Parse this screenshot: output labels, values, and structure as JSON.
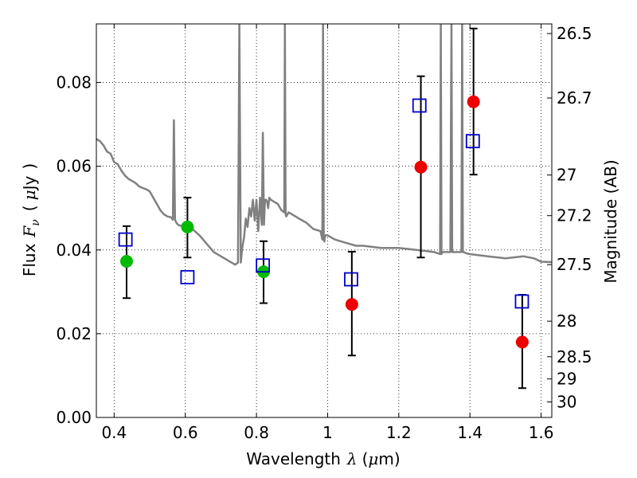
{
  "chart_data": {
    "type": "scatter",
    "xlabel_text": "Wavelength",
    "xlabel_symbol": "λ",
    "xlabel_unit_open": "(",
    "xlabel_unit_mu": "μ",
    "xlabel_unit_rest": "m)",
    "ylabel_text": "Flux",
    "ylabel_symbol": "F",
    "ylabel_subscript": "ν",
    "ylabel_unit_open": "(",
    "ylabel_unit_mu": "μ",
    "ylabel_unit_rest": "Jy",
    "ylabel_unit_close": ")",
    "y2label": "Magnitude (AB)",
    "xlim": [
      0.35,
      1.63
    ],
    "ylim": [
      0.0,
      0.094
    ],
    "xticks": [
      0.4,
      0.6,
      0.8,
      1.0,
      1.2,
      1.4,
      1.6
    ],
    "xtick_labels": [
      "0.4",
      "0.6",
      "0.8",
      "1",
      "1.2",
      "1.4",
      "1.6"
    ],
    "yticks": [
      0.0,
      0.02,
      0.04,
      0.06,
      0.08
    ],
    "ytick_labels": [
      "0.00",
      "0.02",
      "0.04",
      "0.06",
      "0.08"
    ],
    "grid": true,
    "y2ticks": [
      {
        "label": "26.5",
        "flux": 0.0917
      },
      {
        "label": "26.7",
        "flux": 0.0763
      },
      {
        "label": "27",
        "flux": 0.0579
      },
      {
        "label": "27.2",
        "flux": 0.0482
      },
      {
        "label": "27.5",
        "flux": 0.0365
      },
      {
        "label": "28",
        "flux": 0.023
      },
      {
        "label": "28.5",
        "flux": 0.0145
      },
      {
        "label": "29",
        "flux": 0.0092
      },
      {
        "label": "30",
        "flux": 0.0037
      }
    ],
    "model_spectrum": {
      "color": "#808080",
      "x": [
        0.35,
        0.36,
        0.37,
        0.38,
        0.39,
        0.4,
        0.41,
        0.42,
        0.43,
        0.44,
        0.45,
        0.46,
        0.47,
        0.48,
        0.49,
        0.5,
        0.51,
        0.52,
        0.53,
        0.54,
        0.55,
        0.56,
        0.565,
        0.568,
        0.571,
        0.575,
        0.58,
        0.6,
        0.62,
        0.64,
        0.66,
        0.68,
        0.7,
        0.72,
        0.74,
        0.748,
        0.752,
        0.756,
        0.76,
        0.765,
        0.77,
        0.775,
        0.78,
        0.785,
        0.79,
        0.795,
        0.8,
        0.805,
        0.81,
        0.815,
        0.818,
        0.821,
        0.824,
        0.827,
        0.83,
        0.833,
        0.836,
        0.84,
        0.85,
        0.86,
        0.87,
        0.878,
        0.88,
        0.882,
        0.884,
        0.89,
        0.9,
        0.92,
        0.94,
        0.96,
        0.98,
        0.985,
        0.987,
        0.989,
        0.991,
        0.993,
        0.995,
        1.0,
        1.02,
        1.04,
        1.06,
        1.08,
        1.1,
        1.15,
        1.2,
        1.25,
        1.3,
        1.316,
        1.318,
        1.32,
        1.322,
        1.33,
        1.34,
        1.345,
        1.348,
        1.35,
        1.352,
        1.36,
        1.37,
        1.376,
        1.378,
        1.38,
        1.382,
        1.39,
        1.4,
        1.45,
        1.5,
        1.55,
        1.58,
        1.6,
        1.63
      ],
      "y": [
        0.0665,
        0.066,
        0.065,
        0.0635,
        0.063,
        0.061,
        0.0605,
        0.059,
        0.0578,
        0.057,
        0.0565,
        0.056,
        0.0552,
        0.0548,
        0.0545,
        0.054,
        0.0525,
        0.051,
        0.0495,
        0.0485,
        0.048,
        0.0478,
        0.0472,
        0.071,
        0.0472,
        0.0465,
        0.046,
        0.0455,
        0.045,
        0.0435,
        0.0415,
        0.0395,
        0.0385,
        0.0375,
        0.0365,
        0.037,
        0.094,
        0.037,
        0.0405,
        0.043,
        0.0475,
        0.0455,
        0.05,
        0.048,
        0.052,
        0.047,
        0.052,
        0.0445,
        0.0525,
        0.046,
        0.068,
        0.046,
        0.052,
        0.052,
        0.0515,
        0.05,
        0.0525,
        0.052,
        0.0515,
        0.051,
        0.0495,
        0.049,
        0.094,
        0.0485,
        0.048,
        0.049,
        0.0485,
        0.0475,
        0.0465,
        0.045,
        0.0445,
        0.0425,
        0.094,
        0.0425,
        0.042,
        0.0435,
        0.0435,
        0.0435,
        0.0425,
        0.042,
        0.0415,
        0.041,
        0.041,
        0.0405,
        0.0405,
        0.04,
        0.0395,
        0.039,
        0.094,
        0.039,
        0.0395,
        0.0395,
        0.0395,
        0.0395,
        0.094,
        0.0395,
        0.0395,
        0.0395,
        0.0395,
        0.0395,
        0.094,
        0.0395,
        0.0395,
        0.0392,
        0.039,
        0.0385,
        0.038,
        0.0385,
        0.038,
        0.0372,
        0.0371
      ]
    },
    "error_bars": {
      "color": "#000000",
      "items": [
        {
          "x": 0.435,
          "lo": 0.0285,
          "hi": 0.0457
        },
        {
          "x": 0.606,
          "lo": 0.0382,
          "hi": 0.0525
        },
        {
          "x": 0.82,
          "lo": 0.0273,
          "hi": 0.0421
        },
        {
          "x": 1.068,
          "lo": 0.0148,
          "hi": 0.0396
        },
        {
          "x": 1.262,
          "lo": 0.0382,
          "hi": 0.0815
        },
        {
          "x": 1.41,
          "lo": 0.058,
          "hi": 0.0929
        },
        {
          "x": 1.547,
          "lo": 0.007,
          "hi": 0.0293
        }
      ]
    },
    "observed_points": [
      {
        "x": 0.435,
        "y": 0.0373,
        "color": "#00bb00"
      },
      {
        "x": 0.606,
        "y": 0.0455,
        "color": "#00bb00"
      },
      {
        "x": 0.82,
        "y": 0.0348,
        "color": "#00bb00"
      },
      {
        "x": 1.068,
        "y": 0.027,
        "color": "#ee0000"
      },
      {
        "x": 1.262,
        "y": 0.0598,
        "color": "#ee0000"
      },
      {
        "x": 1.41,
        "y": 0.0754,
        "color": "#ee0000"
      },
      {
        "x": 1.547,
        "y": 0.018,
        "color": "#ee0000"
      }
    ],
    "model_points": {
      "color": "#0000cc",
      "points": [
        {
          "x": 0.432,
          "y": 0.0425
        },
        {
          "x": 0.606,
          "y": 0.0335
        },
        {
          "x": 0.818,
          "y": 0.0363
        },
        {
          "x": 1.066,
          "y": 0.033
        },
        {
          "x": 1.258,
          "y": 0.0745
        },
        {
          "x": 1.408,
          "y": 0.066
        },
        {
          "x": 1.546,
          "y": 0.0277
        }
      ]
    }
  }
}
